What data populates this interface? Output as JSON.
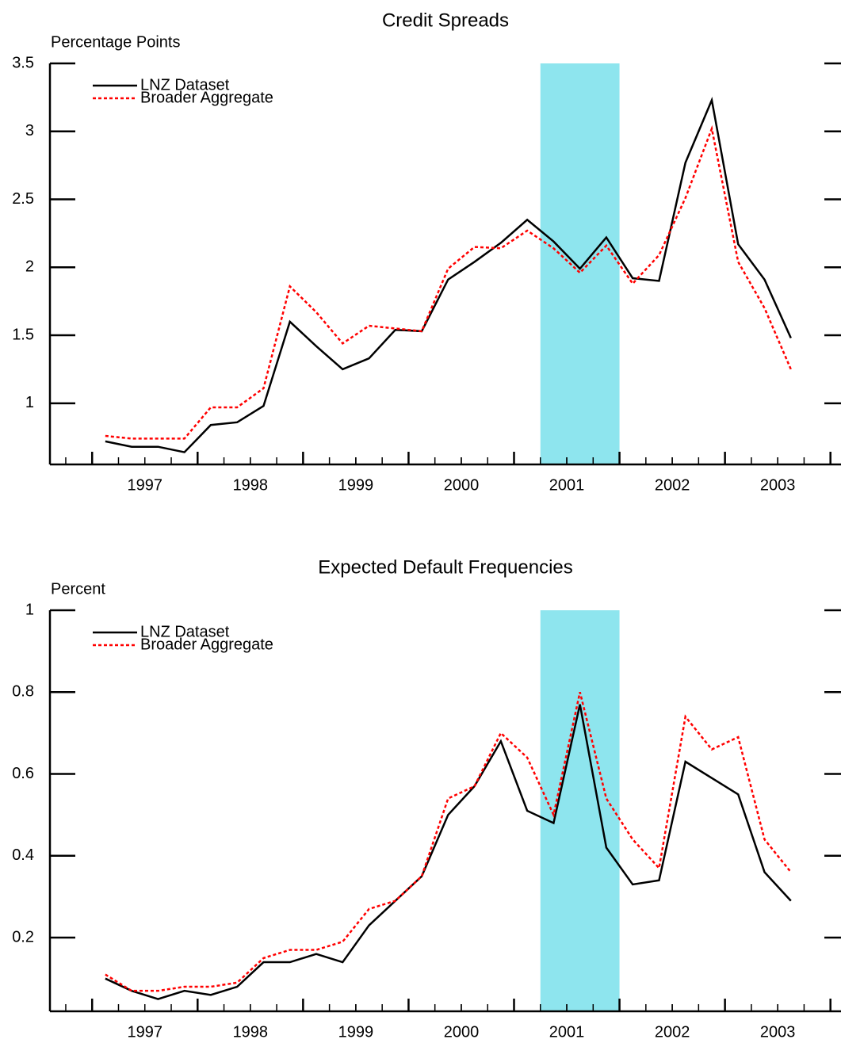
{
  "chart_data": [
    {
      "type": "line",
      "title": "Credit Spreads",
      "y_label": "Percentage Points",
      "x": [
        1997.125,
        1997.375,
        1997.625,
        1997.875,
        1998.125,
        1998.375,
        1998.625,
        1998.875,
        1999.125,
        1999.375,
        1999.625,
        1999.875,
        2000.125,
        2000.375,
        2000.625,
        2000.875,
        2001.125,
        2001.375,
        2001.625,
        2001.875,
        2002.125,
        2002.375,
        2002.625,
        2002.875,
        2003.125,
        2003.375,
        2003.625
      ],
      "series": [
        {
          "name": "LNZ Dataset",
          "color": "#000000",
          "dash": "solid",
          "values": [
            0.72,
            0.68,
            0.68,
            0.64,
            0.84,
            0.86,
            0.98,
            1.6,
            1.42,
            1.25,
            1.33,
            1.54,
            1.53,
            1.91,
            2.04,
            2.18,
            2.35,
            2.19,
            1.99,
            2.22,
            1.92,
            1.9,
            2.77,
            3.23,
            2.17,
            1.91,
            1.48
          ]
        },
        {
          "name": "Broader Aggregate",
          "color": "#ff0000",
          "dash": "dotted",
          "values": [
            0.76,
            0.74,
            0.74,
            0.74,
            0.97,
            0.97,
            1.11,
            1.86,
            1.67,
            1.44,
            1.57,
            1.55,
            1.53,
            1.99,
            2.15,
            2.14,
            2.27,
            2.14,
            1.96,
            2.16,
            1.88,
            2.09,
            2.51,
            3.02,
            2.04,
            1.7,
            1.25
          ]
        }
      ],
      "xlim": [
        1996.6,
        2004.1
      ],
      "xticks": [
        {
          "value": 1997.5,
          "label": "1997"
        },
        {
          "value": 1998.5,
          "label": "1998"
        },
        {
          "value": 1999.5,
          "label": "1999"
        },
        {
          "value": 2000.5,
          "label": "2000"
        },
        {
          "value": 2001.5,
          "label": "2001"
        },
        {
          "value": 2002.5,
          "label": "2002"
        },
        {
          "value": 2003.5,
          "label": "2003"
        }
      ],
      "ylim": [
        0.55,
        3.5
      ],
      "yticks": [
        1.0,
        1.5,
        2.0,
        2.5,
        3.0,
        3.5
      ],
      "shade": [
        2001.25,
        2002.0
      ],
      "shade_color": "#8ee5ee",
      "legend": "upper left"
    },
    {
      "type": "line",
      "title": "Expected Default Frequencies",
      "y_label": "Percent",
      "x": [
        1997.125,
        1997.375,
        1997.625,
        1997.875,
        1998.125,
        1998.375,
        1998.625,
        1998.875,
        1999.125,
        1999.375,
        1999.625,
        1999.875,
        2000.125,
        2000.375,
        2000.625,
        2000.875,
        2001.125,
        2001.375,
        2001.625,
        2001.875,
        2002.125,
        2002.375,
        2002.625,
        2002.875,
        2003.125,
        2003.375,
        2003.625
      ],
      "series": [
        {
          "name": "LNZ Dataset",
          "color": "#000000",
          "dash": "solid",
          "values": [
            0.1,
            0.07,
            0.05,
            0.07,
            0.06,
            0.08,
            0.14,
            0.14,
            0.16,
            0.14,
            0.23,
            0.29,
            0.35,
            0.5,
            0.57,
            0.68,
            0.51,
            0.48,
            0.77,
            0.42,
            0.33,
            0.34,
            0.63,
            0.59,
            0.55,
            0.36,
            0.29
          ]
        },
        {
          "name": "Broader Aggregate",
          "color": "#ff0000",
          "dash": "dotted",
          "values": [
            0.11,
            0.07,
            0.07,
            0.08,
            0.08,
            0.09,
            0.15,
            0.17,
            0.17,
            0.19,
            0.27,
            0.29,
            0.35,
            0.54,
            0.57,
            0.7,
            0.64,
            0.5,
            0.8,
            0.54,
            0.44,
            0.37,
            0.74,
            0.66,
            0.69,
            0.44,
            0.36
          ]
        }
      ],
      "xlim": [
        1996.6,
        2004.1
      ],
      "xticks": [
        {
          "value": 1997.5,
          "label": "1997"
        },
        {
          "value": 1998.5,
          "label": "1998"
        },
        {
          "value": 1999.5,
          "label": "1999"
        },
        {
          "value": 2000.5,
          "label": "2000"
        },
        {
          "value": 2001.5,
          "label": "2001"
        },
        {
          "value": 2002.5,
          "label": "2002"
        },
        {
          "value": 2003.5,
          "label": "2003"
        }
      ],
      "ylim": [
        0.02,
        1.0
      ],
      "yticks": [
        0.2,
        0.4,
        0.6,
        0.8,
        1.0
      ],
      "shade": [
        2001.25,
        2002.0
      ],
      "shade_color": "#8ee5ee",
      "legend": "upper left"
    }
  ]
}
